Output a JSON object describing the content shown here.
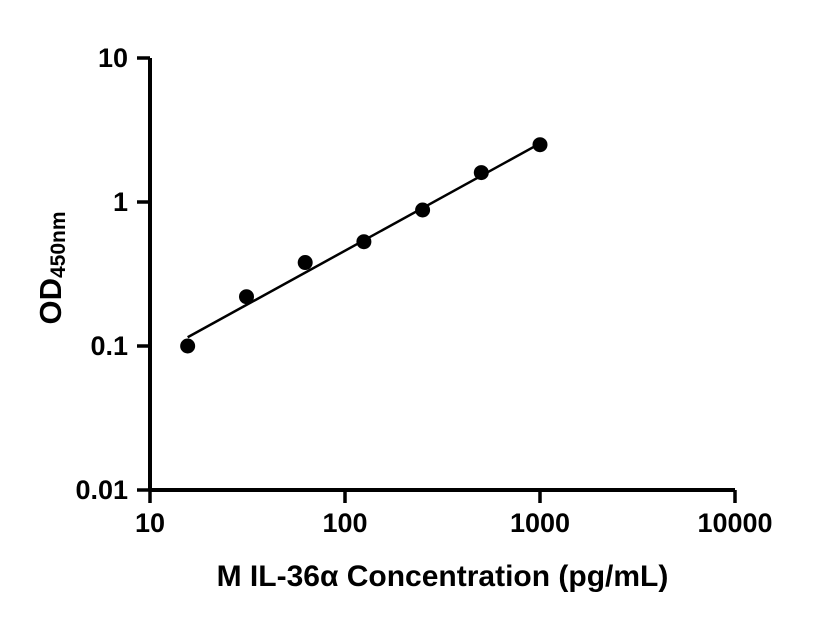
{
  "figure": {
    "background_color": "#ffffff"
  },
  "chart_data": {
    "type": "scatter",
    "title": "",
    "xlabel": "M IL-36α Concentration (pg/mL)",
    "ylabel_main": "OD",
    "ylabel_sub": "450nm",
    "x_scale": "log",
    "y_scale": "log",
    "xlim": [
      10,
      10000
    ],
    "ylim": [
      0.01,
      10
    ],
    "grid": false,
    "legend": false,
    "axis_color": "#000000",
    "line_color": "#000000",
    "marker": {
      "shape": "circle",
      "color": "#000000",
      "radius": 7.5
    },
    "x_ticks": [
      {
        "value": 10,
        "label": "10"
      },
      {
        "value": 100,
        "label": "100"
      },
      {
        "value": 1000,
        "label": "1000"
      },
      {
        "value": 10000,
        "label": "10000"
      }
    ],
    "y_ticks": [
      {
        "value": 10,
        "label": "10"
      },
      {
        "value": 1,
        "label": "1"
      },
      {
        "value": 0.1,
        "label": "0.1"
      },
      {
        "value": 0.01,
        "label": "0.01"
      }
    ],
    "x": [
      15.6,
      31.25,
      62.5,
      125,
      250,
      500,
      1000
    ],
    "y": [
      0.1,
      0.22,
      0.38,
      0.53,
      0.88,
      1.6,
      2.5
    ],
    "trend_line": {
      "x1": 15.6,
      "y1": 0.115,
      "x2": 1000,
      "y2": 2.55
    }
  }
}
